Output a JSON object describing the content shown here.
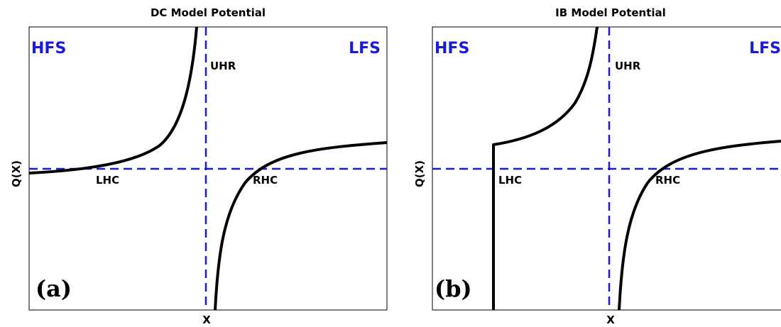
{
  "panels": [
    {
      "title": "DC Model Potential",
      "tag": "(a)",
      "left_region": "HFS",
      "right_region": "LFS",
      "resonance": "UHR",
      "left_cutoff": "LHC",
      "right_cutoff": "RHC",
      "x_label": "X",
      "y_label": "Q(X)"
    },
    {
      "title": "IB Model Potential",
      "tag": "(b)",
      "left_region": "HFS",
      "right_region": "LFS",
      "resonance": "UHR",
      "left_cutoff": "LHC",
      "right_cutoff": "RHC",
      "x_label": "X",
      "y_label": "Q(X)"
    }
  ]
}
